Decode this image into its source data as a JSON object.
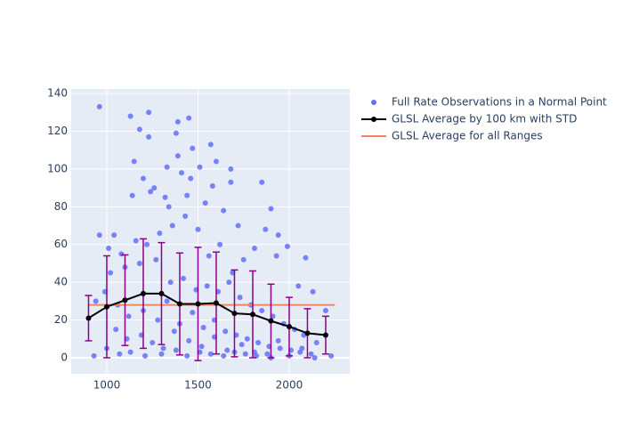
{
  "chart_data": {
    "type": "scatter",
    "xlim": [
      805,
      2332
    ],
    "ylim": [
      -8.5,
      142.4
    ],
    "xticks": [
      1000,
      1500,
      2000
    ],
    "yticks": [
      0,
      20,
      40,
      60,
      80,
      100,
      120,
      140
    ],
    "grid": true,
    "plot_background": "#e5ecf6",
    "legend": "right-outside",
    "error_color": "#8b008b",
    "series": [
      {
        "name": "Full Rate Observations in a Normal Point",
        "color": "#636efa",
        "mode": "markers",
        "x": [
          960,
          1130,
          1230,
          1180,
          1390,
          1450,
          1380,
          1230,
          1150,
          1390,
          1600,
          1680,
          1510,
          1570,
          1470,
          1330,
          1410,
          1460,
          1200,
          1260,
          1320,
          1580,
          1680,
          1850,
          1900,
          1940,
          1720,
          1640,
          1540,
          1440,
          1340,
          1240,
          1140,
          1040,
          960,
          1010,
          1080,
          1160,
          1220,
          1290,
          1360,
          1430,
          1500,
          1560,
          1620,
          1690,
          1750,
          1810,
          1870,
          1930,
          1990,
          2050,
          2090,
          2130,
          2200,
          2230,
          1020,
          1100,
          1180,
          1270,
          1350,
          1420,
          1490,
          1550,
          1610,
          1670,
          1730,
          1790,
          1850,
          1910,
          1970,
          2030,
          2080,
          2150,
          940,
          990,
          1060,
          1120,
          1200,
          1280,
          1330,
          1400,
          1470,
          1530,
          1590,
          1650,
          1710,
          1770,
          1830,
          1890,
          1950,
          2010,
          2060,
          2120,
          1050,
          1110,
          1190,
          1250,
          1310,
          1370,
          1450,
          1520,
          1590,
          1660,
          1740,
          1810,
          1880,
          1940,
          2000,
          2070,
          2140,
          930,
          1000,
          1070,
          1130,
          1210,
          1300,
          1380,
          1440,
          1510,
          1570,
          1640,
          1700,
          1760,
          1820,
          1900
        ],
        "values": [
          133,
          128,
          130,
          121,
          125,
          127,
          119,
          117,
          104,
          107,
          104,
          100,
          101,
          113,
          111,
          101,
          98,
          95,
          95,
          90,
          85,
          91,
          93,
          93,
          79,
          65,
          70,
          78,
          82,
          86,
          80,
          88,
          86,
          65,
          65,
          58,
          55,
          62,
          60,
          66,
          70,
          75,
          68,
          54,
          60,
          45,
          52,
          58,
          68,
          54,
          59,
          38,
          53,
          35,
          25,
          1,
          45,
          48,
          50,
          52,
          40,
          42,
          36,
          38,
          35,
          40,
          32,
          28,
          25,
          22,
          18,
          15,
          12,
          8,
          30,
          35,
          28,
          22,
          25,
          20,
          30,
          18,
          24,
          16,
          20,
          14,
          12,
          10,
          8,
          6,
          5,
          4,
          3,
          2,
          15,
          10,
          12,
          8,
          5,
          14,
          9,
          6,
          11,
          4,
          7,
          3,
          2,
          9,
          1,
          5,
          0,
          1,
          5,
          2,
          3,
          1,
          2,
          4,
          1,
          3,
          2,
          1,
          3,
          2,
          1,
          0
        ]
      },
      {
        "name": "GLSL Average by 100 km with STD",
        "color": "#000000",
        "mode": "lines+markers",
        "x": [
          900,
          1000,
          1100,
          1200,
          1300,
          1400,
          1500,
          1600,
          1700,
          1800,
          1900,
          2000,
          2100,
          2200
        ],
        "values": [
          21,
          27,
          30.5,
          34,
          34,
          28.5,
          28.5,
          29,
          23.5,
          23,
          19.5,
          16.5,
          13,
          12
        ],
        "error": [
          12,
          27,
          24,
          29,
          27,
          27,
          30,
          27,
          23,
          23,
          19.5,
          15.5,
          13,
          10
        ]
      },
      {
        "name": "GLSL Average for all Ranges",
        "color": "#f4845f",
        "mode": "lines",
        "x": [
          900,
          2250
        ],
        "values": [
          28,
          28
        ]
      }
    ]
  }
}
